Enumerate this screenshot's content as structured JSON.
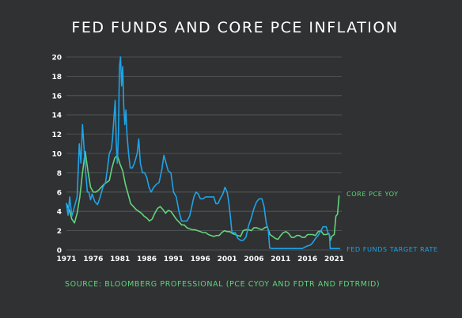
{
  "chart_data": {
    "type": "line",
    "title": "FED FUNDS AND CORE PCE INFLATION",
    "source": "SOURCE: BLOOMBERG PROFESSIONAL (PCE CYOY AND FDTR AND FDTRMID)",
    "xlabel": "",
    "ylabel": "",
    "xlim": [
      1971,
      2022.4
    ],
    "ylim": [
      0,
      20
    ],
    "x_ticks": [
      1971,
      1976,
      1981,
      1986,
      1991,
      1996,
      2001,
      2006,
      2011,
      2016,
      2021
    ],
    "y_ticks": [
      0,
      2,
      4,
      6,
      8,
      10,
      12,
      14,
      16,
      18,
      20
    ],
    "grid": true,
    "legend": "direct-labels-right",
    "colors": {
      "core_pce": "#63d47a",
      "fed_funds": "#1fa3e6",
      "background": "#2f3133",
      "source": "#63d47a"
    },
    "series": [
      {
        "key": "core_pce",
        "name": "CORE PCE YOY",
        "color": "#63d47a",
        "x": [
          1971.0,
          1971.5,
          1972.0,
          1972.5,
          1973.0,
          1973.5,
          1974.0,
          1974.5,
          1975.0,
          1975.5,
          1976.0,
          1976.5,
          1977.0,
          1977.5,
          1978.0,
          1978.5,
          1979.0,
          1979.5,
          1980.0,
          1980.5,
          1981.0,
          1981.5,
          1982.0,
          1982.5,
          1983.0,
          1983.5,
          1984.0,
          1984.5,
          1985.0,
          1985.5,
          1986.0,
          1986.5,
          1987.0,
          1987.5,
          1988.0,
          1988.5,
          1989.0,
          1989.5,
          1990.0,
          1990.5,
          1991.0,
          1991.5,
          1992.0,
          1992.5,
          1993.0,
          1993.5,
          1994.0,
          1994.5,
          1995.0,
          1995.5,
          1996.0,
          1996.5,
          1997.0,
          1997.5,
          1998.0,
          1998.5,
          1999.0,
          1999.5,
          2000.0,
          2000.5,
          2001.0,
          2001.5,
          2002.0,
          2002.5,
          2003.0,
          2003.5,
          2004.0,
          2004.5,
          2005.0,
          2005.5,
          2006.0,
          2006.5,
          2007.0,
          2007.5,
          2008.0,
          2008.5,
          2009.0,
          2009.5,
          2010.0,
          2010.5,
          2011.0,
          2011.5,
          2012.0,
          2012.5,
          2013.0,
          2013.5,
          2014.0,
          2014.5,
          2015.0,
          2015.5,
          2016.0,
          2016.5,
          2017.0,
          2017.5,
          2018.0,
          2018.5,
          2019.0,
          2019.5,
          2020.0,
          2020.3,
          2020.5,
          2021.0,
          2021.3,
          2021.6,
          2021.9
        ],
        "values": [
          4.8,
          4.2,
          3.2,
          2.8,
          3.8,
          5.5,
          8.0,
          10.2,
          8.2,
          6.5,
          6.0,
          6.0,
          6.2,
          6.5,
          6.8,
          7.0,
          7.2,
          8.5,
          9.5,
          9.8,
          8.9,
          8.2,
          6.8,
          5.8,
          4.8,
          4.5,
          4.2,
          4.0,
          3.8,
          3.5,
          3.3,
          3.0,
          3.2,
          3.8,
          4.3,
          4.5,
          4.2,
          3.8,
          4.1,
          4.0,
          3.6,
          3.2,
          2.9,
          2.6,
          2.6,
          2.3,
          2.2,
          2.1,
          2.1,
          2.0,
          1.9,
          1.8,
          1.8,
          1.6,
          1.5,
          1.4,
          1.5,
          1.5,
          1.8,
          2.0,
          1.9,
          1.9,
          1.7,
          1.6,
          1.5,
          1.4,
          2.0,
          2.1,
          2.1,
          2.0,
          2.3,
          2.3,
          2.2,
          2.1,
          2.3,
          2.4,
          1.6,
          1.4,
          1.2,
          1.1,
          1.5,
          1.8,
          1.9,
          1.7,
          1.3,
          1.3,
          1.5,
          1.5,
          1.3,
          1.3,
          1.6,
          1.6,
          1.6,
          1.5,
          1.9,
          2.0,
          1.6,
          1.6,
          1.7,
          1.0,
          1.4,
          1.6,
          3.5,
          3.7,
          5.6
        ]
      },
      {
        "key": "fed_funds",
        "name": "FED FUNDS TARGET RATE",
        "color": "#1fa3e6",
        "x": [
          1971.0,
          1971.3,
          1971.6,
          1972.0,
          1972.5,
          1973.0,
          1973.4,
          1973.7,
          1974.0,
          1974.3,
          1974.6,
          1974.9,
          1975.2,
          1975.5,
          1975.8,
          1976.3,
          1976.8,
          1977.3,
          1977.8,
          1978.3,
          1978.7,
          1979.0,
          1979.4,
          1979.6,
          1979.9,
          1980.1,
          1980.3,
          1980.5,
          1980.7,
          1980.9,
          1981.1,
          1981.3,
          1981.5,
          1981.7,
          1981.9,
          1982.1,
          1982.3,
          1982.6,
          1982.9,
          1983.3,
          1983.7,
          1984.2,
          1984.5,
          1984.8,
          1985.2,
          1985.6,
          1986.0,
          1986.4,
          1986.8,
          1987.3,
          1987.8,
          1988.3,
          1988.8,
          1989.2,
          1989.6,
          1990.0,
          1990.5,
          1991.0,
          1991.5,
          1992.0,
          1992.5,
          1993.0,
          1993.5,
          1994.0,
          1994.4,
          1994.8,
          1995.2,
          1995.6,
          1996.0,
          1996.5,
          1997.0,
          1997.5,
          1998.0,
          1998.5,
          1998.9,
          1999.3,
          1999.7,
          2000.2,
          2000.6,
          2001.0,
          2001.3,
          2001.6,
          2001.9,
          2002.5,
          2003.0,
          2003.5,
          2004.0,
          2004.5,
          2005.0,
          2005.5,
          2006.0,
          2006.5,
          2007.0,
          2007.5,
          2007.9,
          2008.3,
          2008.7,
          2008.95,
          2009.5,
          2011.0,
          2013.0,
          2015.0,
          2015.9,
          2016.5,
          2016.9,
          2017.5,
          2018.0,
          2018.5,
          2018.9,
          2019.5,
          2019.8,
          2020.1,
          2020.25,
          2021.0,
          2022.0
        ],
        "values": [
          4.8,
          3.6,
          5.5,
          3.5,
          4.5,
          5.5,
          11.0,
          9.0,
          13.0,
          10.5,
          8.0,
          6.0,
          6.0,
          5.2,
          5.8,
          5.0,
          4.7,
          5.5,
          6.5,
          7.0,
          8.6,
          10.0,
          10.5,
          11.5,
          14.0,
          15.5,
          11.0,
          9.0,
          12.0,
          19.0,
          20.0,
          17.0,
          19.0,
          15.0,
          13.0,
          14.5,
          12.0,
          10.0,
          8.5,
          8.5,
          9.0,
          10.0,
          11.5,
          9.0,
          8.0,
          8.0,
          7.5,
          6.5,
          6.0,
          6.5,
          6.8,
          7.0,
          8.3,
          9.8,
          9.0,
          8.2,
          8.0,
          6.0,
          5.5,
          4.0,
          3.0,
          3.0,
          3.0,
          3.5,
          4.5,
          5.5,
          6.0,
          5.8,
          5.3,
          5.3,
          5.5,
          5.5,
          5.5,
          5.5,
          4.8,
          4.8,
          5.3,
          5.8,
          6.5,
          6.0,
          5.0,
          3.5,
          1.8,
          1.8,
          1.2,
          1.0,
          1.0,
          1.3,
          2.5,
          3.3,
          4.3,
          5.0,
          5.3,
          5.3,
          4.5,
          2.8,
          2.0,
          0.2,
          0.15,
          0.15,
          0.15,
          0.15,
          0.4,
          0.5,
          0.7,
          1.2,
          1.5,
          2.0,
          2.4,
          2.4,
          1.8,
          1.6,
          0.15,
          0.15,
          0.15
        ]
      }
    ]
  }
}
